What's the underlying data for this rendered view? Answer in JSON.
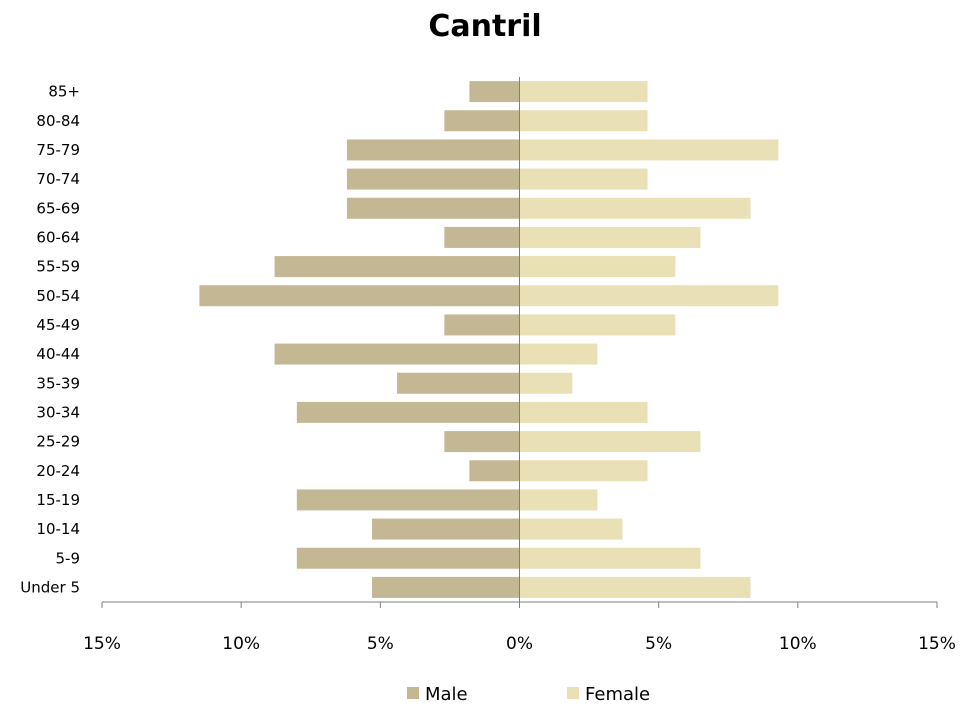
{
  "chart_data": {
    "type": "bar",
    "orientation": "horizontal",
    "title": "Cantril",
    "categories": [
      "85+",
      "80-84",
      "75-79",
      "70-74",
      "65-69",
      "60-64",
      "55-59",
      "50-54",
      "45-49",
      "40-44",
      "35-39",
      "30-34",
      "25-29",
      "20-24",
      "15-19",
      "10-14",
      "5-9",
      "Under 5"
    ],
    "series": [
      {
        "name": "Male",
        "color": "#c4b894",
        "values": [
          1.8,
          2.7,
          6.2,
          6.2,
          6.2,
          2.7,
          8.8,
          11.5,
          2.7,
          8.8,
          4.4,
          8.0,
          2.7,
          1.8,
          8.0,
          5.3,
          8.0,
          5.3
        ]
      },
      {
        "name": "Female",
        "color": "#e9e0b6",
        "values": [
          4.6,
          4.6,
          9.3,
          4.6,
          8.3,
          6.5,
          5.6,
          9.3,
          5.6,
          2.8,
          1.9,
          4.6,
          6.5,
          4.6,
          2.8,
          3.7,
          6.5,
          8.3
        ]
      }
    ],
    "xlim": [
      -15,
      15
    ],
    "xticks": [
      -15,
      -10,
      -5,
      0,
      5,
      10,
      15
    ],
    "xtick_labels": [
      "15%",
      "10%",
      "5%",
      "0%",
      "5%",
      "10%",
      "15%"
    ],
    "grid": false,
    "legend_position": "bottom"
  }
}
